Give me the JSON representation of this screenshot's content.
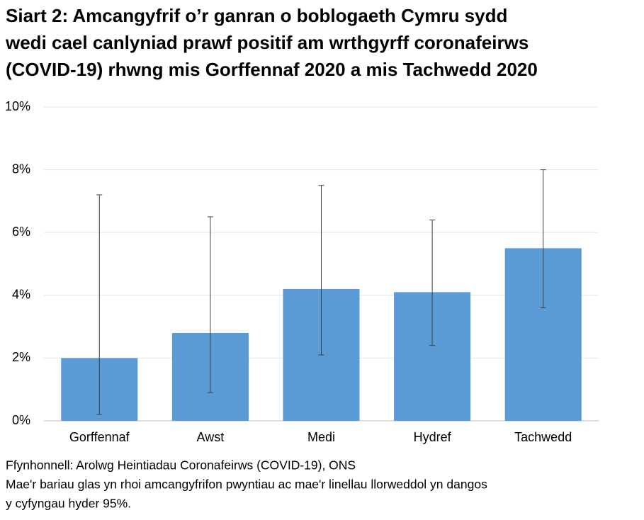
{
  "chart_data": {
    "type": "bar",
    "title": [
      "Siart 2: Amcangyfrif o’r ganran o boblogaeth Cymru sydd",
      "wedi cael canlyniad prawf positif am wrthgyrff coronafeirws",
      "(COVID-19) rhwng mis Gorffennaf 2020 a mis Tachwedd 2020"
    ],
    "categories": [
      "Gorffennaf",
      "Awst",
      "Medi",
      "Hydref",
      "Tachwedd"
    ],
    "values": [
      2.0,
      2.8,
      4.2,
      4.1,
      5.5
    ],
    "ci_low": [
      0.2,
      0.9,
      2.1,
      2.4,
      3.6
    ],
    "ci_high": [
      7.2,
      6.5,
      7.5,
      6.4,
      8.0
    ],
    "color": "#5b9bd5",
    "ylim": [
      0,
      10
    ],
    "yticks": [
      {
        "value": 0,
        "label": "0%"
      },
      {
        "value": 2,
        "label": "2%"
      },
      {
        "value": 4,
        "label": "4%"
      },
      {
        "value": 6,
        "label": "6%"
      },
      {
        "value": 8,
        "label": "8%"
      },
      {
        "value": 10,
        "label": "10%"
      }
    ],
    "grid": true,
    "notes": [
      "Ffynhonnell: Arolwg Heintiadau Coronafeirws (COVID-19), ONS",
      "Mae'r bariau glas yn rhoi amcangyfrifon pwyntiau ac mae'r linellau llorweddol yn dangos",
      "y cyfyngau hyder 95%."
    ]
  }
}
